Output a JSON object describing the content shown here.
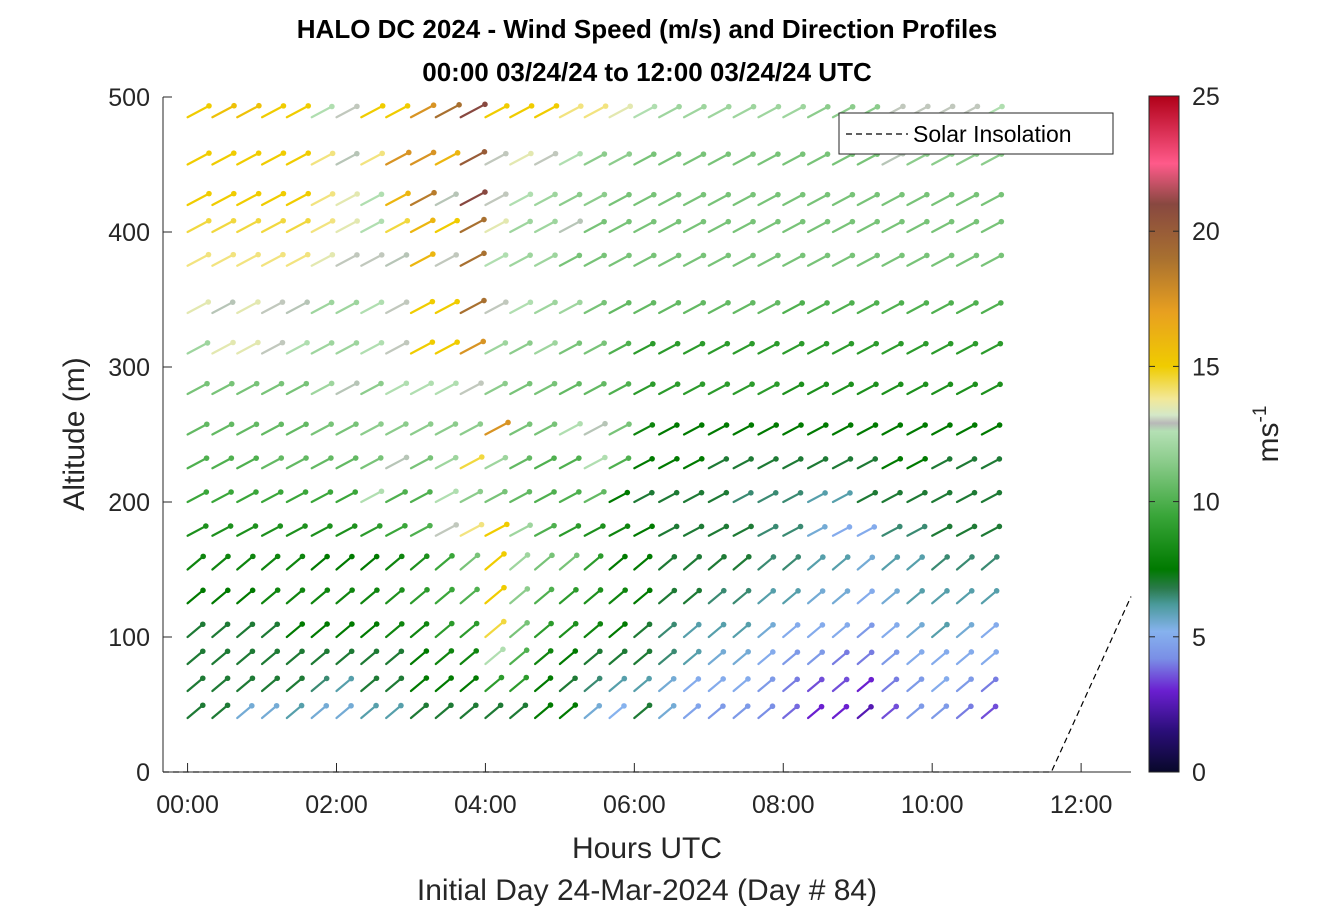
{
  "chart_data": {
    "type": "quiver",
    "title": "HALO DC 2024 - Wind Speed (m/s) and Direction Profiles",
    "subtitle": "00:00 03/24/24 to 12:00 03/24/24  UTC",
    "xlabel": "Hours UTC",
    "xlabel2": "Initial Day 24-Mar-2024 (Day # 84)",
    "ylabel": "Altitude (m)",
    "colorbar_label": "ms",
    "colorbar_label_exp": "-1",
    "xlim": [
      -0.33,
      12.67
    ],
    "ylim": [
      0,
      500
    ],
    "x_ticks": [
      0,
      2,
      4,
      6,
      8,
      10,
      12
    ],
    "x_tick_labels": [
      "00:00",
      "02:00",
      "04:00",
      "06:00",
      "08:00",
      "10:00",
      "12:00"
    ],
    "y_ticks": [
      0,
      100,
      200,
      300,
      400,
      500
    ],
    "y_tick_labels": [
      "0",
      "100",
      "200",
      "300",
      "400",
      "500"
    ],
    "colorbar": {
      "range": [
        0,
        25
      ],
      "ticks": [
        0,
        5,
        10,
        15,
        20,
        25
      ],
      "tick_labels": [
        "0",
        "5",
        "10",
        "15",
        "20",
        "25"
      ],
      "stops": [
        [
          0,
          "#08082a"
        ],
        [
          1.5,
          "#2a0e78"
        ],
        [
          3,
          "#6a1fd0"
        ],
        [
          4.2,
          "#7a8fe6"
        ],
        [
          5.2,
          "#86b2ee"
        ],
        [
          6.2,
          "#4a9a9a"
        ],
        [
          6.8,
          "#2a7a4a"
        ],
        [
          7.5,
          "#007a00"
        ],
        [
          9.5,
          "#3aa63a"
        ],
        [
          11.5,
          "#8ccc8c"
        ],
        [
          12.6,
          "#b4e0b4"
        ],
        [
          12.9,
          "#b8b8b8"
        ],
        [
          13.2,
          "#d4e8c8"
        ],
        [
          13.8,
          "#f2e898"
        ],
        [
          15,
          "#f0cc00"
        ],
        [
          17,
          "#e8a020"
        ],
        [
          19,
          "#a87030"
        ],
        [
          21,
          "#884840"
        ],
        [
          22.5,
          "#ff5a8a"
        ],
        [
          25,
          "#b00018"
        ]
      ]
    },
    "legend": {
      "entries": [
        "Solar Insolation"
      ],
      "location": "top-right"
    },
    "series": [
      {
        "name": "Solar Insolation",
        "style": "dashed",
        "color": "#000000",
        "points": [
          [
            -0.33,
            0
          ],
          [
            11.6,
            0
          ],
          [
            12.67,
            130
          ]
        ]
      }
    ],
    "wind": {
      "direction_flow": "toward north-east (from the south-west)",
      "times": [
        0,
        0.333,
        0.667,
        1,
        1.333,
        1.667,
        2,
        2.333,
        2.667,
        3,
        3.333,
        3.667,
        4,
        4.333,
        4.667,
        5,
        5.333,
        5.667,
        6,
        6.333,
        6.667,
        7,
        7.333,
        7.667,
        8,
        8.333,
        8.667,
        9,
        9.333,
        9.667,
        10,
        10.333,
        10.667
      ],
      "altitudes": [
        40,
        60,
        80,
        100,
        125,
        150,
        175,
        200,
        225,
        250,
        280,
        310,
        340,
        375,
        400,
        420,
        450,
        485
      ],
      "speeds_ms": [
        [
          7,
          7,
          5.5,
          5.5,
          6,
          5.5,
          5.5,
          6,
          6,
          7,
          7,
          7,
          7,
          7,
          7.5,
          7.5,
          5.5,
          5.2,
          7,
          5.5,
          4.8,
          4.5,
          4.5,
          4.2,
          3.8,
          3,
          3,
          2.5,
          3.5,
          4.5,
          4.5,
          4,
          3.5
        ],
        [
          7,
          7,
          7,
          7,
          7,
          6.5,
          6,
          7,
          7,
          7.5,
          7.5,
          7.5,
          9,
          9,
          7.5,
          7,
          6.5,
          6,
          6,
          5.5,
          5,
          5,
          5,
          4.5,
          4,
          3.5,
          3.5,
          3,
          4,
          4.5,
          5,
          4.5,
          4
        ],
        [
          7,
          7,
          7,
          7,
          7,
          7,
          7,
          7,
          7,
          7.5,
          8,
          8,
          12.5,
          10,
          8,
          7.5,
          7,
          7,
          7,
          6.5,
          6,
          5.5,
          5.5,
          5,
          4.5,
          4.5,
          4,
          4,
          4.5,
          5,
          5,
          5,
          5
        ],
        [
          7,
          7,
          7,
          7,
          7.5,
          7.5,
          7.5,
          7.5,
          8,
          8,
          9,
          9,
          14.5,
          11,
          9,
          8.5,
          8,
          7.5,
          7,
          6.5,
          6,
          6,
          6,
          5.5,
          5,
          5,
          5,
          4.5,
          5,
          5.5,
          6,
          5.5,
          5
        ],
        [
          7.5,
          7.5,
          7.5,
          8,
          8,
          8,
          8,
          8,
          8.5,
          9,
          9.5,
          10,
          15,
          11.5,
          10,
          9,
          8.5,
          8,
          7.5,
          7,
          7,
          6.5,
          6.5,
          6,
          6,
          5.5,
          5.5,
          5,
          5.5,
          6,
          6,
          6,
          6
        ],
        [
          8,
          8,
          8,
          8,
          8,
          7.5,
          7.5,
          7.5,
          8,
          8.5,
          9.5,
          11,
          15,
          12,
          11,
          11,
          9,
          7.5,
          7.5,
          7,
          7,
          7,
          7,
          6.5,
          6.5,
          6,
          6,
          5.5,
          6,
          6,
          6.5,
          6.5,
          6.5
        ],
        [
          8.5,
          8.5,
          8.5,
          8.5,
          8.5,
          8.5,
          8.5,
          9,
          9.5,
          10,
          13,
          14,
          15,
          12,
          10,
          9,
          8.5,
          8,
          7.5,
          7,
          7,
          7,
          7,
          6.5,
          6.5,
          5.5,
          5,
          5,
          6.5,
          6.5,
          7,
          7,
          7
        ],
        [
          9.5,
          9.5,
          9.5,
          9.5,
          9.5,
          9.5,
          9.5,
          12.5,
          10,
          10,
          12.5,
          11.5,
          11,
          10.5,
          10,
          10,
          10.5,
          7.5,
          7,
          7,
          7,
          7,
          6.5,
          6.5,
          6.5,
          6,
          6,
          7,
          7,
          7,
          7,
          7,
          7
        ],
        [
          10,
          10,
          10,
          10.5,
          10.5,
          10.5,
          10.5,
          11,
          12.8,
          11,
          12,
          14.5,
          12,
          10.5,
          10,
          10,
          12.5,
          10,
          7.5,
          7.5,
          7.5,
          7,
          7,
          7,
          7,
          7,
          7,
          7,
          7.5,
          7.5,
          7,
          7,
          7
        ],
        [
          10.5,
          10.5,
          10.5,
          10.5,
          10.5,
          11,
          11,
          11.5,
          11.5,
          11.5,
          11.5,
          11.5,
          17.5,
          11,
          11,
          12.5,
          12.8,
          11,
          8,
          7.5,
          7.5,
          7.5,
          7.5,
          7.5,
          7.5,
          7.5,
          7.5,
          7.5,
          7.5,
          7.5,
          7.5,
          7.5,
          7.5
        ],
        [
          11,
          11,
          11,
          11,
          11,
          12,
          12.8,
          11.5,
          12.5,
          12.5,
          12.5,
          13,
          11.5,
          11,
          11,
          10.5,
          10.5,
          10,
          9,
          9,
          9,
          9,
          9,
          9,
          8.5,
          8.5,
          8.5,
          8.5,
          8.5,
          8.5,
          8.5,
          8.5,
          8.5
        ],
        [
          12,
          13.5,
          13.5,
          13,
          12.5,
          12,
          12,
          12.5,
          13,
          15,
          15,
          17.5,
          12,
          11.5,
          12,
          11,
          11,
          10,
          9,
          9,
          9,
          9,
          9,
          9,
          9,
          9,
          9,
          9,
          9,
          9,
          9,
          9,
          9
        ],
        [
          13.5,
          12.8,
          13.5,
          13,
          12.8,
          12,
          12,
          12.5,
          13,
          15,
          15,
          19,
          13,
          12.5,
          12,
          12,
          11,
          10.5,
          10.5,
          10.5,
          10.5,
          10.5,
          10.5,
          10.5,
          10,
          10,
          10,
          10,
          10,
          10,
          10,
          10,
          10
        ],
        [
          14,
          14,
          14,
          14,
          14,
          13.5,
          13,
          13,
          12.8,
          16,
          13,
          19,
          12.5,
          12,
          12,
          11,
          11,
          11,
          11,
          11,
          11,
          11,
          11,
          11,
          11,
          11,
          11,
          11,
          11,
          11,
          11,
          11,
          11
        ],
        [
          14.5,
          14.5,
          14.5,
          14.5,
          14.5,
          14,
          13.5,
          12.5,
          14.5,
          16,
          15,
          19,
          13.5,
          12,
          12,
          12.8,
          11,
          11,
          11,
          11,
          11,
          11,
          11,
          11,
          11,
          11,
          11,
          11,
          11,
          11,
          11,
          11,
          11
        ],
        [
          15,
          15,
          15,
          15,
          15,
          14,
          13.5,
          12.5,
          16,
          18.5,
          12.8,
          21,
          13,
          12.5,
          12,
          11.5,
          11.5,
          11,
          11,
          11,
          11,
          11,
          11,
          11,
          11,
          11,
          11,
          11,
          11,
          11,
          11,
          11,
          11
        ],
        [
          15,
          15,
          15,
          15,
          15,
          14,
          12.8,
          14,
          17.5,
          17.5,
          16,
          20,
          13,
          13.5,
          13,
          12.5,
          11.5,
          11.5,
          11,
          11,
          11,
          11,
          11,
          11,
          11,
          11,
          11,
          11,
          12.8,
          11.5,
          11.5,
          11.5,
          11.5
        ],
        [
          15,
          15.5,
          15.5,
          15,
          15,
          12.5,
          13,
          15,
          15,
          17.5,
          19,
          21,
          15,
          15,
          15,
          14,
          14,
          13.5,
          12.5,
          12,
          12,
          12,
          12,
          12,
          12,
          11.5,
          11.5,
          11.5,
          13,
          13,
          13,
          13,
          12.5
        ]
      ]
    }
  }
}
